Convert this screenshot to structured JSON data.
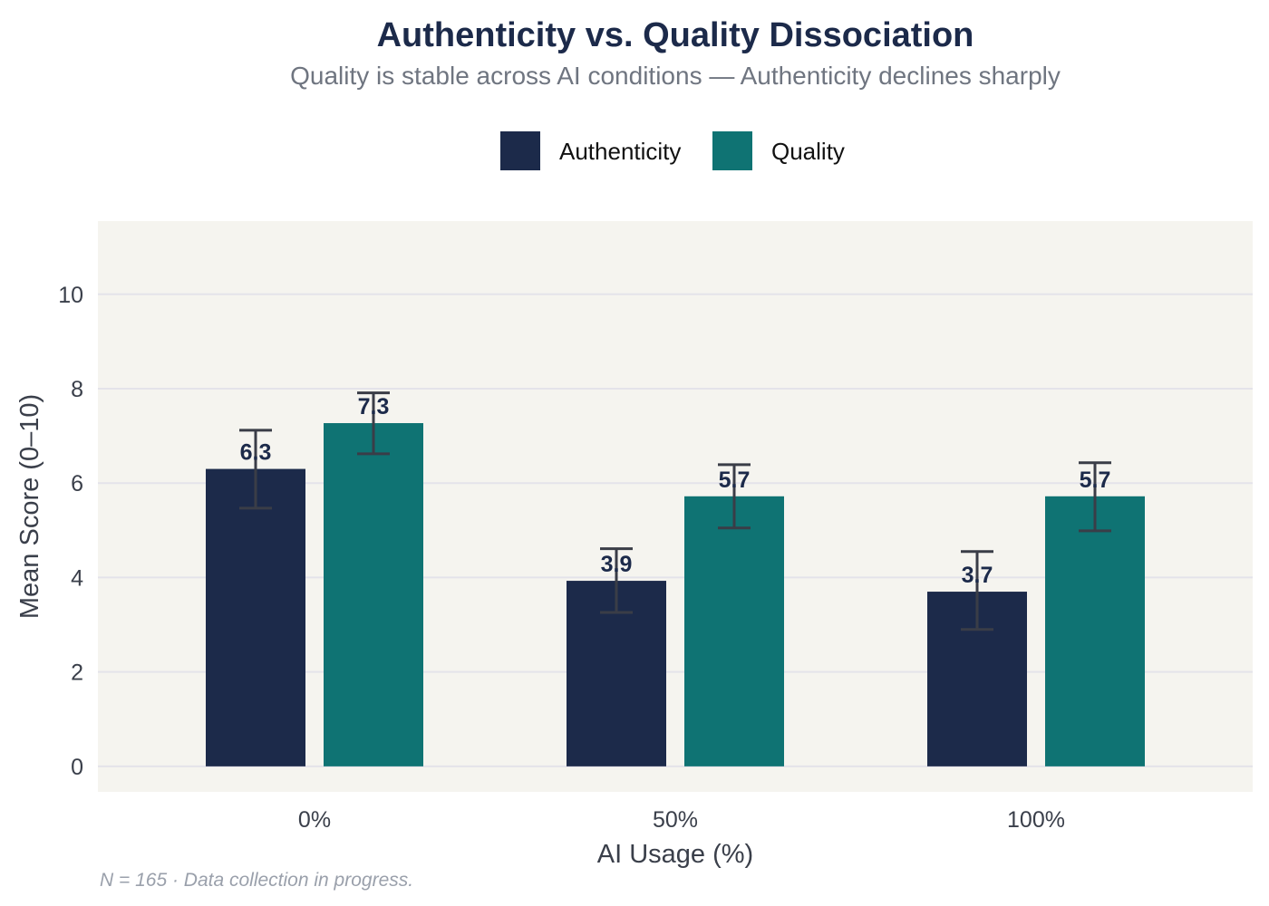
{
  "chart_data": {
    "type": "bar",
    "title": "Authenticity vs. Quality Dissociation",
    "subtitle": "Quality is stable across AI conditions — Authenticity declines sharply",
    "xlabel": "AI Usage (%)",
    "ylabel": "Mean Score (0–10)",
    "categories": [
      "0%",
      "50%",
      "100%"
    ],
    "ylim": [
      -0.54,
      11.55
    ],
    "yticks": [
      0,
      2,
      4,
      6,
      8,
      10
    ],
    "grid": true,
    "legend_position": "top",
    "background": "#f5f4ef",
    "series": [
      {
        "name": "Authenticity",
        "color": "#1c2a4a",
        "values": [
          6.3,
          3.93,
          3.7
        ],
        "labels": [
          "6.3",
          "3.9",
          "3.7"
        ],
        "error_low": [
          5.47,
          3.26,
          2.9
        ],
        "error_high": [
          7.12,
          4.61,
          4.55
        ]
      },
      {
        "name": "Quality",
        "color": "#0f7373",
        "values": [
          7.27,
          5.72,
          5.72
        ],
        "labels": [
          "7.3",
          "5.7",
          "5.7"
        ],
        "error_low": [
          6.62,
          5.05,
          4.99
        ],
        "error_high": [
          7.91,
          6.39,
          6.43
        ]
      }
    ],
    "footnote": "N = 165  ·  Data collection in progress."
  }
}
